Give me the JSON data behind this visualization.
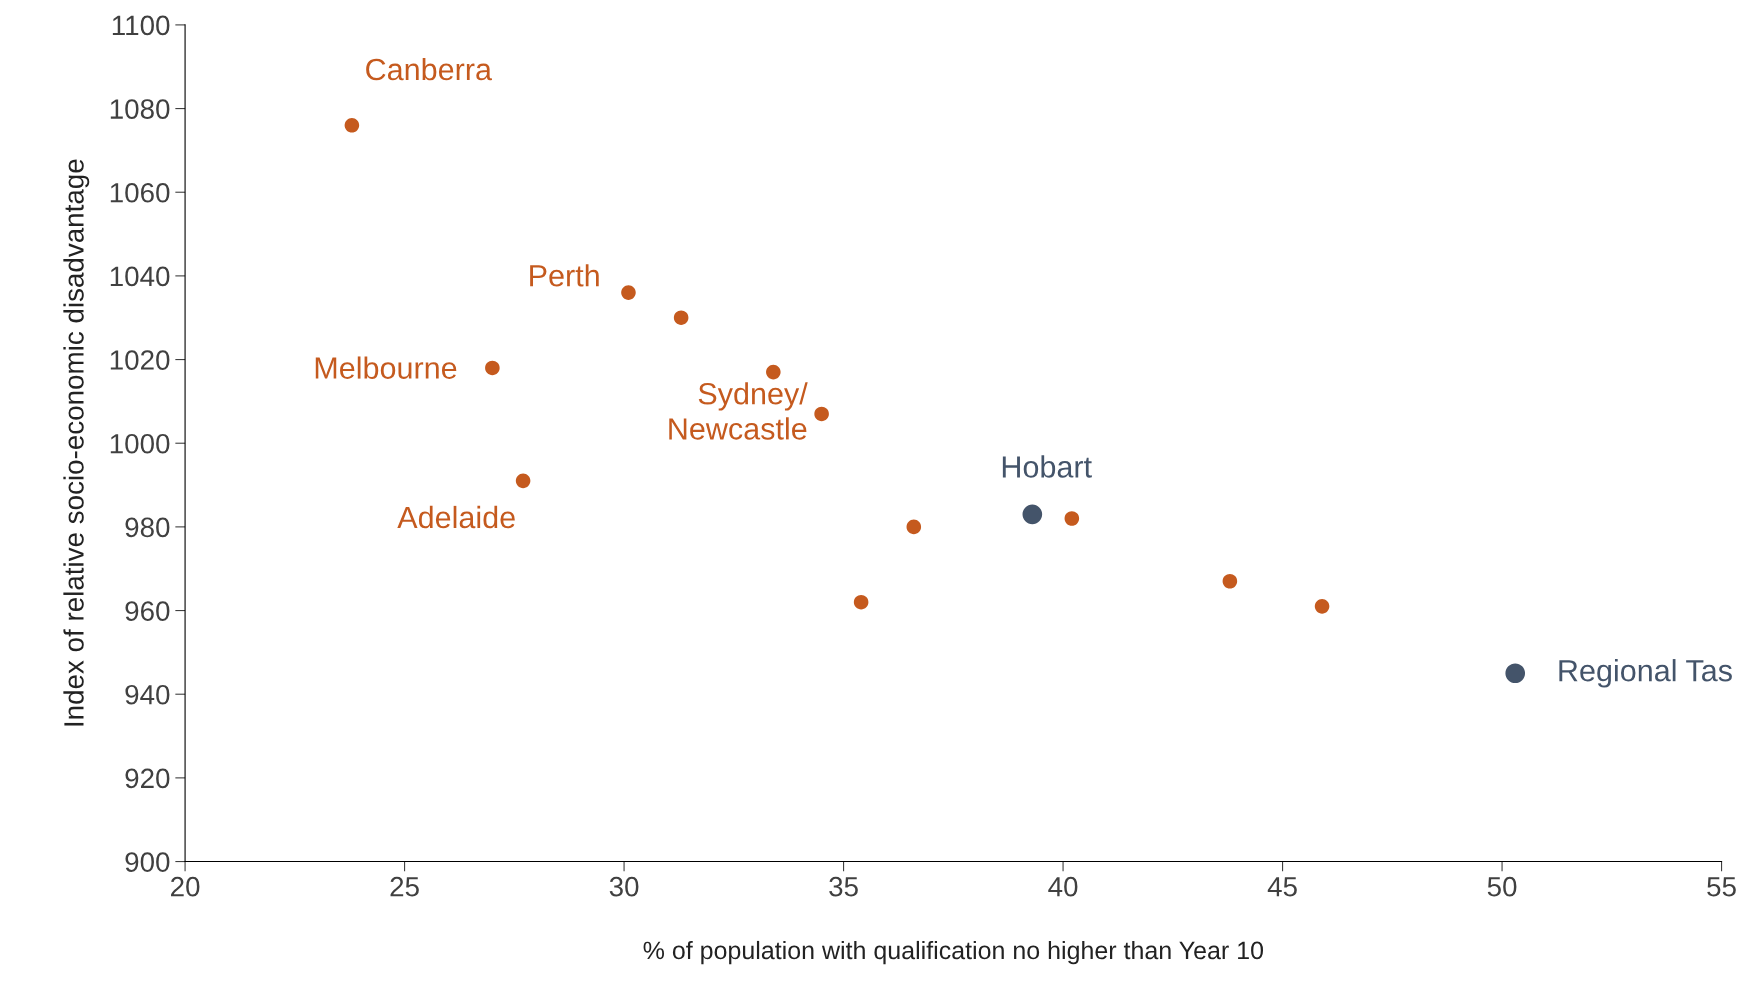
{
  "chart_data": {
    "type": "scatter",
    "xlabel": "% of population with qualification no higher than Year 10",
    "ylabel": "Index of relative socio-economic disadvantage",
    "xlim": [
      20,
      55
    ],
    "xticks": [
      20,
      25,
      30,
      35,
      40,
      45,
      50,
      55
    ],
    "ylim": [
      900,
      1100
    ],
    "yticks": [
      900,
      920,
      940,
      960,
      980,
      1000,
      1020,
      1040,
      1060,
      1080,
      1100
    ],
    "grid": false,
    "marker": "circle",
    "series": [
      {
        "color": "#c55a1e",
        "x": [
          23.8,
          30.1,
          31.3,
          27.0,
          33.4,
          34.5,
          27.7,
          36.6,
          40.2,
          35.4,
          43.8,
          45.9
        ],
        "values": [
          1076,
          1036,
          1030,
          1018,
          1017,
          1007,
          991,
          980,
          982,
          962,
          967,
          961
        ]
      },
      {
        "color": "#44546a",
        "x": [
          39.3,
          50.3
        ],
        "values": [
          983,
          945
        ]
      }
    ],
    "annotations": [
      {
        "text": "Canberra",
        "x": 23.8,
        "y": 1076
      },
      {
        "text": "Perth",
        "x": 30.1,
        "y": 1036
      },
      {
        "text": "Melbourne",
        "x": 27.0,
        "y": 1018
      },
      {
        "text": "Sydney/\nNewcastle",
        "x": 34.5,
        "y": 1007
      },
      {
        "text": "Adelaide",
        "x": 27.7,
        "y": 991
      },
      {
        "text": "Hobart",
        "x": 39.3,
        "y": 983
      },
      {
        "text": "Regional Tas",
        "x": 50.3,
        "y": 945
      }
    ]
  }
}
